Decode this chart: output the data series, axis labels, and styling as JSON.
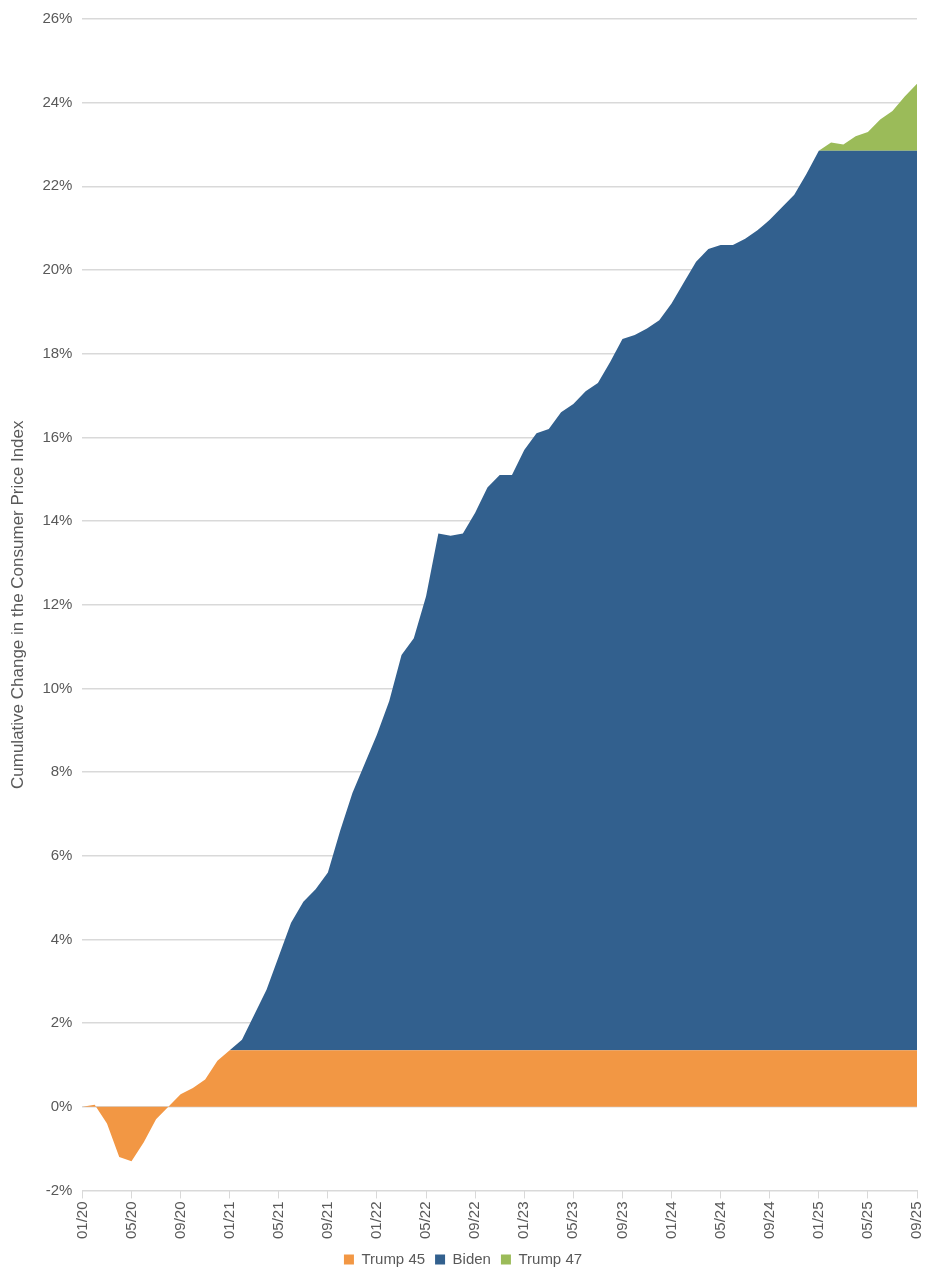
{
  "chart_data": {
    "type": "area",
    "stacked": true,
    "ylabel": "Cumulative Change in the Consumer Price Index",
    "categories": [
      "01/20",
      null,
      null,
      null,
      "05/20",
      null,
      null,
      null,
      "09/20",
      null,
      null,
      null,
      "01/21",
      null,
      null,
      null,
      "05/21",
      null,
      null,
      null,
      "09/21",
      null,
      null,
      null,
      "01/22",
      null,
      null,
      null,
      "05/22",
      null,
      null,
      null,
      "09/22",
      null,
      null,
      null,
      "01/23",
      null,
      null,
      null,
      "05/23",
      null,
      null,
      null,
      "09/23",
      null,
      null,
      null,
      "01/24",
      null,
      null,
      null,
      "05/24",
      null,
      null,
      null,
      "09/24",
      null,
      null,
      null,
      "01/25",
      null,
      null,
      null,
      "05/25",
      null,
      null,
      null,
      "09/25"
    ],
    "series": [
      {
        "name": "Trump 45",
        "color": "#f29744",
        "values": [
          0,
          0.05,
          -0.4,
          -1.2,
          -1.3,
          -0.85,
          -0.3,
          0,
          0.3,
          0.45,
          0.65,
          1.1,
          1.35,
          1.35,
          1.35,
          1.35,
          1.35,
          1.35,
          1.35,
          1.35,
          1.35,
          1.35,
          1.35,
          1.35,
          1.35,
          1.35,
          1.35,
          1.35,
          1.35,
          1.35,
          1.35,
          1.35,
          1.35,
          1.35,
          1.35,
          1.35,
          1.35,
          1.35,
          1.35,
          1.35,
          1.35,
          1.35,
          1.35,
          1.35,
          1.35,
          1.35,
          1.35,
          1.35,
          1.35,
          1.35,
          1.35,
          1.35,
          1.35,
          1.35,
          1.35,
          1.35,
          1.35,
          1.35,
          1.35,
          1.35,
          1.35,
          1.35,
          1.35,
          1.35,
          1.35,
          1.35,
          1.35,
          1.35,
          1.35
        ]
      },
      {
        "name": "Biden",
        "color": "#32608e",
        "values": [
          null,
          null,
          null,
          null,
          null,
          null,
          null,
          null,
          null,
          null,
          null,
          null,
          0,
          0.25,
          0.85,
          1.45,
          2.25,
          3.05,
          3.55,
          3.85,
          4.25,
          5.25,
          6.15,
          6.85,
          7.55,
          8.35,
          9.45,
          9.85,
          10.85,
          12.35,
          12.3,
          12.35,
          12.85,
          13.45,
          13.75,
          13.75,
          14.35,
          14.75,
          14.85,
          15.25,
          15.45,
          15.75,
          15.95,
          16.45,
          17.0,
          17.1,
          17.25,
          17.45,
          17.85,
          18.35,
          18.85,
          19.15,
          19.25,
          19.25,
          19.4,
          19.6,
          19.85,
          20.15,
          20.45,
          20.95,
          21.5,
          21.5,
          21.5,
          21.5,
          21.5,
          21.5,
          21.5,
          21.5,
          21.5
        ]
      },
      {
        "name": "Trump 47",
        "color": "#9bbb59",
        "values": [
          null,
          null,
          null,
          null,
          null,
          null,
          null,
          null,
          null,
          null,
          null,
          null,
          null,
          null,
          null,
          null,
          null,
          null,
          null,
          null,
          null,
          null,
          null,
          null,
          null,
          null,
          null,
          null,
          null,
          null,
          null,
          null,
          null,
          null,
          null,
          null,
          null,
          null,
          null,
          null,
          null,
          null,
          null,
          null,
          null,
          null,
          null,
          null,
          null,
          null,
          null,
          null,
          null,
          null,
          null,
          null,
          null,
          null,
          null,
          null,
          0,
          0.2,
          0.15,
          0.35,
          0.45,
          0.75,
          0.95,
          1.3,
          1.6
        ]
      }
    ],
    "ylim": [
      -2,
      26
    ],
    "yticks": [
      {
        "value": -2,
        "label": "-2%"
      },
      {
        "value": 0,
        "label": "0%"
      },
      {
        "value": 2,
        "label": "2%"
      },
      {
        "value": 4,
        "label": "4%"
      },
      {
        "value": 6,
        "label": "6%"
      },
      {
        "value": 8,
        "label": "8%"
      },
      {
        "value": 10,
        "label": "10%"
      },
      {
        "value": 12,
        "label": "12%"
      },
      {
        "value": 14,
        "label": "14%"
      },
      {
        "value": 16,
        "label": "16%"
      },
      {
        "value": 18,
        "label": "18%"
      },
      {
        "value": 20,
        "label": "20%"
      },
      {
        "value": 22,
        "label": "22%"
      },
      {
        "value": 24,
        "label": "24%"
      },
      {
        "value": 26,
        "label": "26%"
      }
    ],
    "grid": "y",
    "legend": "bottom"
  }
}
